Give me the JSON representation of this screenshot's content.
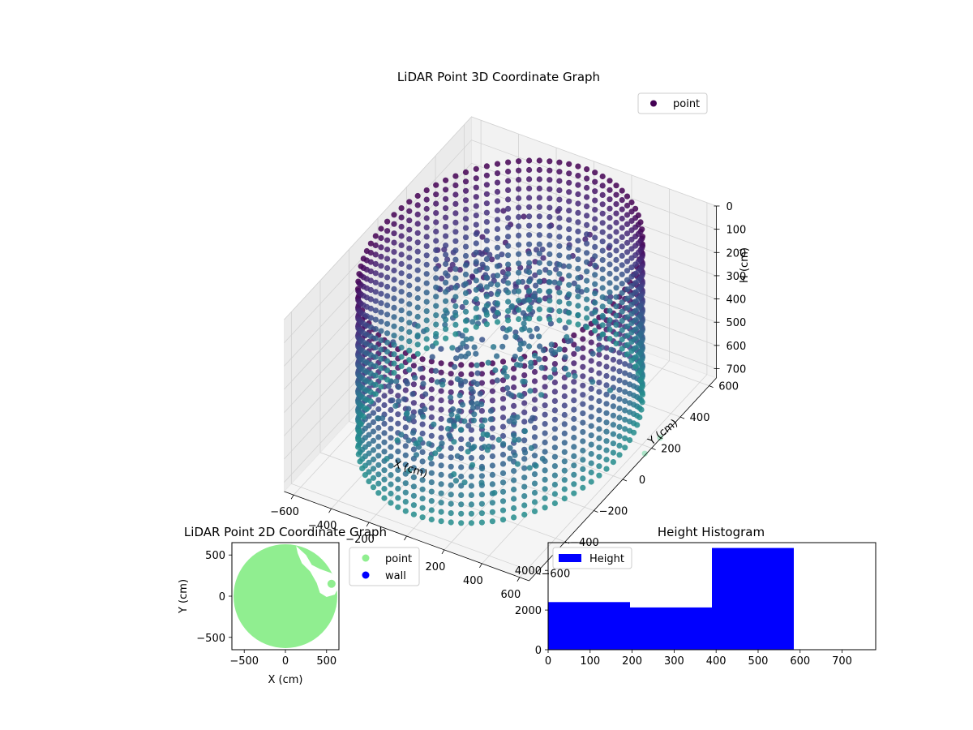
{
  "chart_data": [
    {
      "type": "scatter",
      "title": "LiDAR Point 3D Coordinate Graph",
      "xlabel": "X (cm)",
      "ylabel": "Y (cm)",
      "zlabel": "H (cm)",
      "xlim": [
        -650,
        650
      ],
      "ylim": [
        -650,
        650
      ],
      "zlim": [
        0,
        740
      ],
      "zaxis_inverted": true,
      "xticks": [
        "−600",
        "−400",
        "−200",
        "0",
        "200",
        "400",
        "600"
      ],
      "yticks": [
        "−600",
        "−400",
        "−200",
        "0",
        "200",
        "400",
        "600"
      ],
      "zticks": [
        "0",
        "100",
        "200",
        "300",
        "400",
        "500",
        "600",
        "700"
      ],
      "grid": true,
      "legend": {
        "position": "top-right",
        "entries": [
          "point"
        ]
      },
      "colormap": "viridis",
      "series": [
        {
          "name": "point",
          "description": "wall ring of radius about 650 cm spanning heights 0 to 700 cm, plus interior clutter"
        }
      ]
    },
    {
      "type": "scatter",
      "title": "LiDAR Point 2D Coordinate Graph",
      "xlabel": "X (cm)",
      "ylabel": "Y (cm)",
      "xlim": [
        -650,
        650
      ],
      "ylim": [
        -650,
        650
      ],
      "xticks": [
        "−500",
        "0",
        "500"
      ],
      "yticks": [
        "−500",
        "0",
        "500"
      ],
      "legend": {
        "position": "outside-right",
        "entries": [
          "point",
          "wall"
        ]
      },
      "series": [
        {
          "name": "point",
          "color": "#90ee90"
        },
        {
          "name": "wall",
          "color": "#0000ff"
        }
      ]
    },
    {
      "type": "bar",
      "title": "Height Histogram",
      "xlim": [
        0,
        780
      ],
      "ylim": [
        0,
        5400
      ],
      "xticks": [
        "0",
        "100",
        "200",
        "300",
        "400",
        "500",
        "600",
        "700"
      ],
      "yticks": [
        "0",
        "2000",
        "4000"
      ],
      "legend": {
        "position": "top-left",
        "entries": [
          "Height"
        ]
      },
      "series": [
        {
          "name": "Height",
          "color": "#0000ff",
          "bins": [
            {
              "x0": 0,
              "x1": 195,
              "count": 2400
            },
            {
              "x0": 195,
              "x1": 390,
              "count": 2130
            },
            {
              "x0": 390,
              "x1": 585,
              "count": 5130
            }
          ]
        }
      ]
    }
  ]
}
